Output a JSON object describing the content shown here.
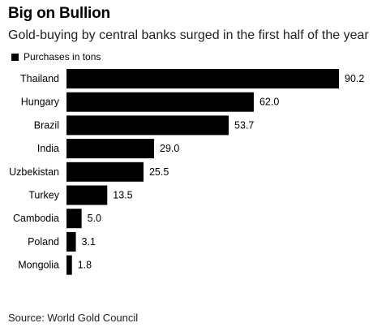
{
  "chart_data": {
    "type": "bar",
    "orientation": "horizontal",
    "title": "Big on Bullion",
    "subtitle": "Gold-buying by central banks surged in the first half of the year",
    "categories": [
      "Thailand",
      "Hungary",
      "Brazil",
      "India",
      "Uzbekistan",
      "Turkey",
      "Cambodia",
      "Poland",
      "Mongolia"
    ],
    "series": [
      {
        "name": "Purchases in tons",
        "values": [
          90.2,
          62.0,
          53.7,
          29.0,
          25.5,
          13.5,
          5.0,
          3.1,
          1.8
        ],
        "value_labels": [
          "90.2",
          "62.0",
          "53.7",
          "29.0",
          "25.5",
          "13.5",
          "5.0",
          "3.1",
          "1.8"
        ],
        "color": "#000000"
      }
    ],
    "xlim": [
      0,
      90.2
    ],
    "grid": false,
    "legend": "top-left",
    "source": "Source: World Gold Council"
  }
}
